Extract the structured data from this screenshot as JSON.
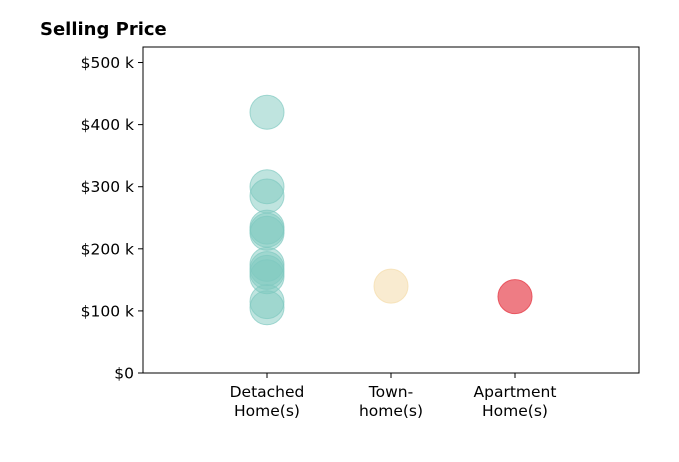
{
  "chart_data": {
    "type": "scatter",
    "title": "Selling Price",
    "xlabel": "",
    "ylabel": "",
    "categories": [
      [
        "Detached",
        "Home(s)"
      ],
      [
        "Town-",
        "home(s)"
      ],
      [
        "Apartment",
        "Home(s)"
      ]
    ],
    "y_ticks": [
      {
        "value": 0,
        "label": "$0"
      },
      {
        "value": 100000,
        "label": "$100 k"
      },
      {
        "value": 200000,
        "label": "$200 k"
      },
      {
        "value": 300000,
        "label": "$300 k"
      },
      {
        "value": 400000,
        "label": "$400 k"
      },
      {
        "value": 500000,
        "label": "$500 k"
      }
    ],
    "ylim": [
      0,
      525000
    ],
    "xlim": [
      -1,
      3
    ],
    "grid": false,
    "series": [
      {
        "category_index": 0,
        "color": "#7fc9c0",
        "opacity": 0.5,
        "values": [
          420000,
          300000,
          285000,
          235000,
          230000,
          225000,
          175000,
          168000,
          162000,
          155000,
          115000,
          105000
        ]
      },
      {
        "category_index": 1,
        "color": "#f5deb0",
        "opacity": 0.6,
        "values": [
          140000
        ]
      },
      {
        "category_index": 2,
        "color": "#e8505b",
        "opacity": 0.75,
        "values": [
          123000
        ]
      }
    ]
  }
}
